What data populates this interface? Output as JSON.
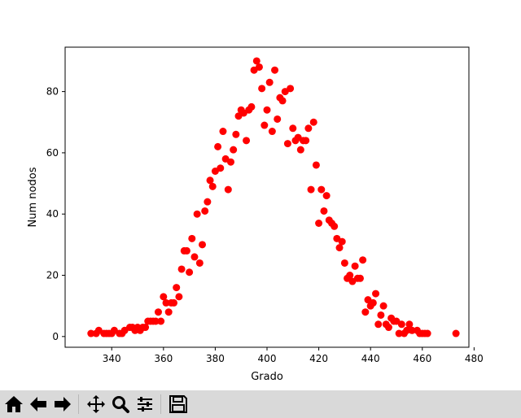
{
  "chart_data": {
    "type": "scatter",
    "xlabel": "Grado",
    "ylabel": "Num nodos",
    "xlim": [
      322,
      478
    ],
    "ylim": [
      -3.5,
      94.5
    ],
    "xticks": [
      340,
      360,
      380,
      400,
      420,
      440,
      460,
      480
    ],
    "yticks": [
      0,
      20,
      40,
      60,
      80
    ],
    "grid": false,
    "marker_color": "#ff0000",
    "series": [
      {
        "points": [
          [
            332,
            1
          ],
          [
            334,
            1
          ],
          [
            335,
            2
          ],
          [
            337,
            1
          ],
          [
            338,
            1
          ],
          [
            339,
            1
          ],
          [
            340,
            1
          ],
          [
            341,
            2
          ],
          [
            343,
            1
          ],
          [
            344,
            1
          ],
          [
            345,
            2
          ],
          [
            347,
            3
          ],
          [
            348,
            3
          ],
          [
            349,
            2
          ],
          [
            350,
            3
          ],
          [
            351,
            2
          ],
          [
            352,
            3
          ],
          [
            353,
            3
          ],
          [
            354,
            5
          ],
          [
            355,
            5
          ],
          [
            356,
            5
          ],
          [
            357,
            5
          ],
          [
            358,
            8
          ],
          [
            359,
            5
          ],
          [
            360,
            13
          ],
          [
            361,
            11
          ],
          [
            362,
            8
          ],
          [
            363,
            11
          ],
          [
            364,
            11
          ],
          [
            365,
            16
          ],
          [
            366,
            13
          ],
          [
            367,
            22
          ],
          [
            368,
            28
          ],
          [
            369,
            28
          ],
          [
            370,
            21
          ],
          [
            371,
            32
          ],
          [
            372,
            26
          ],
          [
            373,
            40
          ],
          [
            374,
            24
          ],
          [
            375,
            30
          ],
          [
            376,
            41
          ],
          [
            377,
            44
          ],
          [
            378,
            51
          ],
          [
            379,
            49
          ],
          [
            380,
            54
          ],
          [
            381,
            62
          ],
          [
            382,
            55
          ],
          [
            383,
            67
          ],
          [
            384,
            58
          ],
          [
            385,
            48
          ],
          [
            386,
            57
          ],
          [
            387,
            61
          ],
          [
            388,
            66
          ],
          [
            389,
            72
          ],
          [
            390,
            74
          ],
          [
            391,
            73
          ],
          [
            392,
            64
          ],
          [
            393,
            74
          ],
          [
            394,
            75
          ],
          [
            395,
            87
          ],
          [
            396,
            90
          ],
          [
            397,
            88
          ],
          [
            398,
            81
          ],
          [
            399,
            69
          ],
          [
            400,
            74
          ],
          [
            401,
            83
          ],
          [
            402,
            67
          ],
          [
            403,
            87
          ],
          [
            404,
            71
          ],
          [
            405,
            78
          ],
          [
            406,
            77
          ],
          [
            407,
            80
          ],
          [
            408,
            63
          ],
          [
            409,
            81
          ],
          [
            410,
            68
          ],
          [
            411,
            64
          ],
          [
            412,
            65
          ],
          [
            413,
            61
          ],
          [
            414,
            64
          ],
          [
            415,
            64
          ],
          [
            416,
            68
          ],
          [
            417,
            48
          ],
          [
            418,
            70
          ],
          [
            419,
            56
          ],
          [
            420,
            37
          ],
          [
            421,
            48
          ],
          [
            422,
            41
          ],
          [
            423,
            46
          ],
          [
            424,
            38
          ],
          [
            425,
            37
          ],
          [
            426,
            36
          ],
          [
            427,
            32
          ],
          [
            428,
            29
          ],
          [
            429,
            31
          ],
          [
            430,
            24
          ],
          [
            431,
            19
          ],
          [
            432,
            20
          ],
          [
            433,
            18
          ],
          [
            434,
            23
          ],
          [
            435,
            19
          ],
          [
            436,
            19
          ],
          [
            437,
            25
          ],
          [
            438,
            8
          ],
          [
            439,
            12
          ],
          [
            440,
            10
          ],
          [
            441,
            11
          ],
          [
            442,
            14
          ],
          [
            443,
            4
          ],
          [
            444,
            7
          ],
          [
            445,
            10
          ],
          [
            446,
            4
          ],
          [
            447,
            3
          ],
          [
            448,
            6
          ],
          [
            449,
            5
          ],
          [
            450,
            5
          ],
          [
            451,
            1
          ],
          [
            452,
            4
          ],
          [
            453,
            1
          ],
          [
            454,
            2
          ],
          [
            455,
            4
          ],
          [
            456,
            2
          ],
          [
            458,
            2
          ],
          [
            459,
            1
          ],
          [
            460,
            1
          ],
          [
            461,
            1
          ],
          [
            462,
            1
          ],
          [
            473,
            1
          ]
        ]
      }
    ]
  },
  "toolbar": {
    "buttons": [
      {
        "name": "home-button",
        "icon": "home-icon"
      },
      {
        "name": "back-button",
        "icon": "arrow-left-icon"
      },
      {
        "name": "forward-button",
        "icon": "arrow-right-icon"
      },
      {
        "name": "pan-button",
        "icon": "move-icon"
      },
      {
        "name": "zoom-button",
        "icon": "magnifier-icon"
      },
      {
        "name": "configure-subplots-button",
        "icon": "sliders-icon"
      },
      {
        "name": "save-button",
        "icon": "floppy-disk-icon"
      }
    ]
  }
}
